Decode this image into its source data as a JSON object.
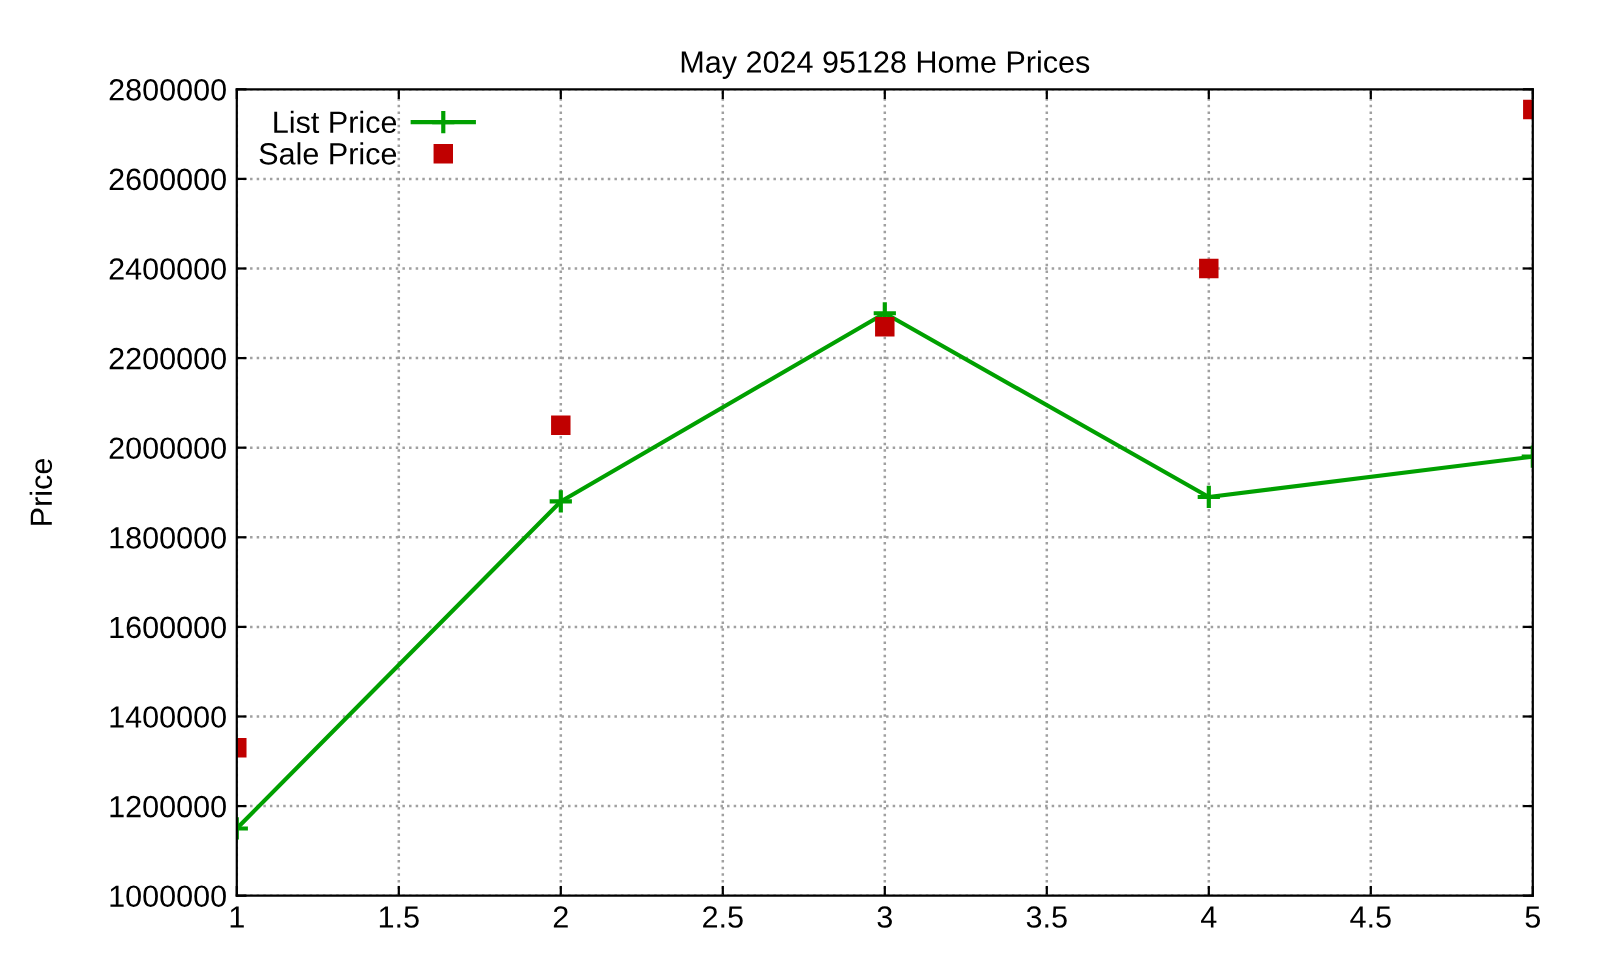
{
  "chart_data": {
    "type": "line",
    "title": "May 2024 95128 Home Prices",
    "ylabel": "Price",
    "x": [
      1,
      2,
      3,
      4,
      5
    ],
    "series": [
      {
        "name": "List Price",
        "color": "#00a000",
        "marker": "cross",
        "values": [
          1150000,
          1880000,
          2300000,
          1890000,
          1980000
        ]
      },
      {
        "name": "Sale Price",
        "type": "scatter",
        "color": "#c00000",
        "marker": "square",
        "values": [
          1330000,
          2050000,
          2270000,
          2400000,
          2755000
        ]
      }
    ],
    "xlim": [
      1,
      5
    ],
    "xticks": [
      1,
      1.5,
      2,
      2.5,
      3,
      3.5,
      4,
      4.5,
      5
    ],
    "ylim": [
      1000000,
      2800000
    ],
    "yticks": [
      1000000,
      1200000,
      1400000,
      1600000,
      1800000,
      2000000,
      2200000,
      2400000,
      2600000,
      2800000
    ],
    "grid": true,
    "legend": "top left"
  }
}
